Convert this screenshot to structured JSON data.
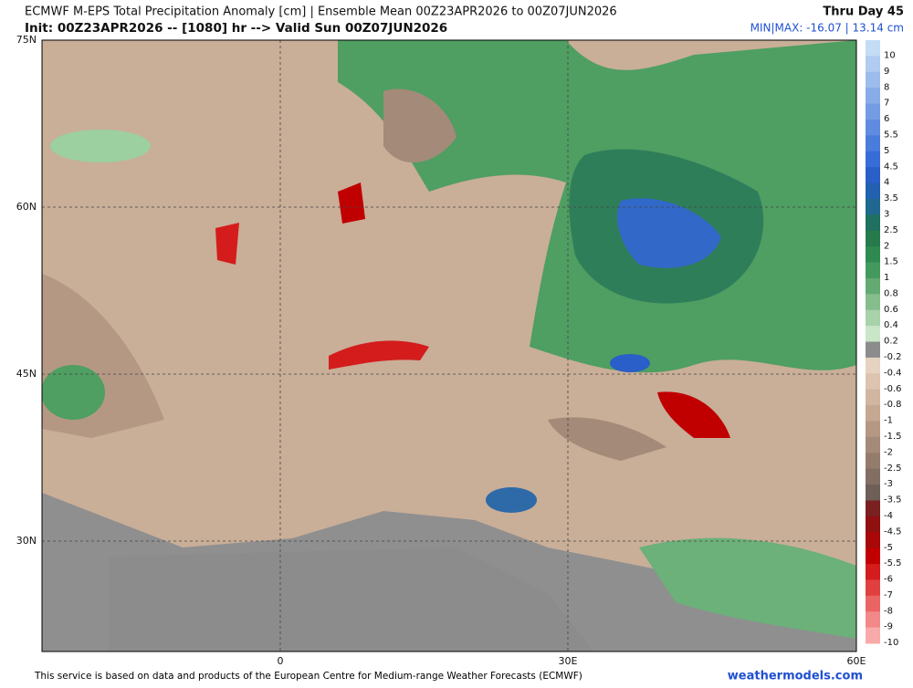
{
  "header": {
    "title": "ECMWF M-EPS Total Precipitation Anomaly [cm] | Ensemble Mean 00Z23APR2026 to 00Z07JUN2026",
    "subtitle": "Init: 00Z23APR2026 -- [1080] hr --> Valid Sun 00Z07JUN2026",
    "period": "Thru Day 45",
    "minmax": "MIN|MAX: -16.07 | 13.14 cm"
  },
  "map": {
    "lat_labels": [
      "75N",
      "60N",
      "45N",
      "30N"
    ],
    "lon_labels": [
      "0",
      "30E",
      "60E"
    ]
  },
  "colorbar": {
    "levels": [
      {
        "label": "10",
        "color": "#c4dcf4"
      },
      {
        "label": "9",
        "color": "#b0ccf0"
      },
      {
        "label": "8",
        "color": "#9cbcec"
      },
      {
        "label": "7",
        "color": "#88ace8"
      },
      {
        "label": "6",
        "color": "#749ce4"
      },
      {
        "label": "5.5",
        "color": "#5f8ce0"
      },
      {
        "label": "5",
        "color": "#4a7cdc"
      },
      {
        "label": "4.5",
        "color": "#386cd8"
      },
      {
        "label": "4",
        "color": "#2a5ec8"
      },
      {
        "label": "3.5",
        "color": "#2260b0"
      },
      {
        "label": "3",
        "color": "#206890"
      },
      {
        "label": "2.5",
        "color": "#1f7060"
      },
      {
        "label": "2",
        "color": "#267a4c"
      },
      {
        "label": "1.5",
        "color": "#2f8a52"
      },
      {
        "label": "1",
        "color": "#44995e"
      },
      {
        "label": "0.8",
        "color": "#62aa72"
      },
      {
        "label": "0.6",
        "color": "#85be8c"
      },
      {
        "label": "0.4",
        "color": "#a8d2aa"
      },
      {
        "label": "0.2",
        "color": "#cae6c8"
      },
      {
        "label": "-0.2",
        "color": "#8c8c8c"
      },
      {
        "label": "-0.4",
        "color": "#e6d2c0"
      },
      {
        "label": "-0.6",
        "color": "#dcc4b0"
      },
      {
        "label": "-0.8",
        "color": "#d0b6a0"
      },
      {
        "label": "-1",
        "color": "#c4a892"
      },
      {
        "label": "-1.5",
        "color": "#b49884"
      },
      {
        "label": "-2",
        "color": "#a48a78"
      },
      {
        "label": "-2.5",
        "color": "#947c6c"
      },
      {
        "label": "-3",
        "color": "#826e62"
      },
      {
        "label": "-3.5",
        "color": "#6e6058"
      },
      {
        "label": "-4",
        "color": "#7a2020"
      },
      {
        "label": "-4.5",
        "color": "#901010"
      },
      {
        "label": "-5",
        "color": "#a80808"
      },
      {
        "label": "-5.5",
        "color": "#c00000"
      },
      {
        "label": "-6",
        "color": "#d41c1c"
      },
      {
        "label": "-7",
        "color": "#e04040"
      },
      {
        "label": "-8",
        "color": "#ea6464"
      },
      {
        "label": "-9",
        "color": "#f28888"
      },
      {
        "label": "-10",
        "color": "#f8aaaa"
      }
    ]
  },
  "footer": {
    "credit": "This service is based on data and products of the European Centre for Medium-range Weather Forecasts (ECMWF)",
    "site": "weathermodels.com"
  }
}
